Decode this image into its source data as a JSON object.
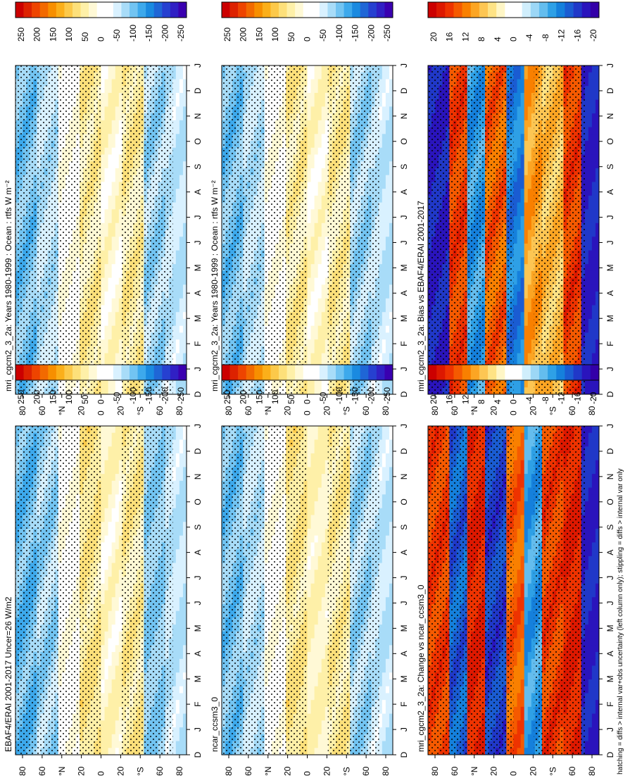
{
  "figure": {
    "footnote": "hatching = diffs > internal var+obs uncertainty (left column only); stippling = diffs > internal var only"
  },
  "colors": {
    "heat": [
      "#cc0000",
      "#dd2200",
      "#ee4400",
      "#f26a00",
      "#f78f00",
      "#fbaf1a",
      "#fcc94a",
      "#fde07a",
      "#fef0a8",
      "#fff9d6",
      "#ffffff",
      "#ffffff",
      "#d9f1ff",
      "#a8dcf8",
      "#72c4f2",
      "#3da9ec",
      "#1a8ae0",
      "#1f66d6",
      "#2640d0",
      "#3020c4",
      "#3a00b0"
    ],
    "diff": [
      "#cc0000",
      "#dd1800",
      "#ee3300",
      "#f55a00",
      "#f98000",
      "#fca523",
      "#fdc653",
      "#fee385",
      "#fff6c6",
      "#ffffff",
      "#ffffff",
      "#d0eefc",
      "#9cd7f6",
      "#64bdee",
      "#2ea0e6",
      "#1580dc",
      "#1a5cd2",
      "#2038c8",
      "#2a14bc",
      "#3300a8"
    ]
  },
  "chart_data": [
    {
      "type": "heatmap",
      "panel": "top-left",
      "title": "mri_cgcm2_3_2a: Years 1980-1999 : Ocean : rtfs W m⁻²",
      "x_ticks": [
        "D",
        "J",
        "F",
        "M",
        "A",
        "M",
        "J",
        "J",
        "A",
        "S",
        "O",
        "N",
        "D",
        "J"
      ],
      "y_ticks": [
        "80",
        "60",
        "°N",
        "20",
        "0",
        "20",
        "°S",
        "60",
        "80"
      ],
      "colorbar": {
        "ticks": [
          "250",
          "200",
          "150",
          "100",
          "50",
          "0",
          "-50",
          "-100",
          "-150",
          "-200",
          "-250"
        ],
        "palette": "heat"
      },
      "bands": [
        [
          -100,
          -100
        ],
        [
          -70,
          -70
        ],
        [
          0,
          0
        ],
        [
          60,
          40
        ],
        [
          30,
          20
        ],
        [
          60,
          40
        ],
        [
          -80,
          -80
        ],
        [
          -60,
          -70
        ]
      ],
      "month_factor": [
        1.0,
        0.95,
        0.85,
        0.6,
        0.4,
        0.35,
        0.4,
        0.55,
        0.8,
        0.95,
        1.0,
        1.0
      ]
    },
    {
      "type": "heatmap",
      "panel": "top-right",
      "title": "mri_cgcm2_3_2a: Years 1980-1999 : Ocean : rtfs W m⁻²",
      "x_ticks": [
        "D",
        "J",
        "F",
        "M",
        "A",
        "M",
        "J",
        "J",
        "A",
        "S",
        "O",
        "N",
        "D",
        "J"
      ],
      "y_ticks": [
        "80",
        "60",
        "°N",
        "20",
        "0",
        "20",
        "°S",
        "60",
        "80"
      ],
      "colorbar": {
        "ticks": [
          "250",
          "200",
          "150",
          "100",
          "50",
          "0",
          "-50",
          "-100",
          "-150",
          "-200",
          "-250"
        ],
        "palette": "heat"
      },
      "bands": [
        [
          -100,
          -100
        ],
        [
          -70,
          -70
        ],
        [
          0,
          0
        ],
        [
          60,
          40
        ],
        [
          30,
          20
        ],
        [
          60,
          40
        ],
        [
          -80,
          -80
        ],
        [
          -60,
          -70
        ]
      ],
      "month_factor": [
        1.0,
        0.95,
        0.85,
        0.6,
        0.4,
        0.35,
        0.4,
        0.55,
        0.8,
        0.95,
        1.0,
        1.0
      ]
    },
    {
      "type": "heatmap",
      "panel": "middle-left",
      "title": "EBAF4/ERAI 2001-2017 Uncer=26 W/m2",
      "x_ticks": [
        "D",
        "J",
        "F",
        "M",
        "A",
        "M",
        "J",
        "J",
        "A",
        "S",
        "O",
        "N",
        "D",
        "J"
      ],
      "y_ticks": [
        "80",
        "60",
        "°N",
        "20",
        "0",
        "20",
        "°S",
        "60",
        "80"
      ],
      "colorbar": {
        "ticks": [
          "250",
          "200",
          "150",
          "100",
          "50",
          "0",
          "-50",
          "-100",
          "-150",
          "-200",
          "-250"
        ],
        "palette": "heat"
      },
      "bands": [
        [
          -110,
          -110
        ],
        [
          -80,
          -80
        ],
        [
          0,
          0
        ],
        [
          70,
          50
        ],
        [
          35,
          20
        ],
        [
          60,
          40
        ],
        [
          -90,
          -90
        ],
        [
          -60,
          -70
        ]
      ],
      "month_factor": [
        1.0,
        0.95,
        0.85,
        0.6,
        0.4,
        0.35,
        0.4,
        0.55,
        0.8,
        0.95,
        1.0,
        1.0
      ]
    },
    {
      "type": "heatmap",
      "panel": "middle-right",
      "title": "ncar_ccsm3_0",
      "x_ticks": [
        "D",
        "J",
        "F",
        "M",
        "A",
        "M",
        "J",
        "J",
        "A",
        "S",
        "O",
        "N",
        "D",
        "J"
      ],
      "y_ticks": [
        "80",
        "60",
        "°N",
        "20",
        "0",
        "20",
        "°S",
        "60",
        "80"
      ],
      "colorbar": {
        "ticks": [
          "250",
          "200",
          "150",
          "100",
          "50",
          "0",
          "-50",
          "-100",
          "-150",
          "-200",
          "-250"
        ],
        "palette": "heat"
      },
      "bands": [
        [
          -100,
          -100
        ],
        [
          -70,
          -70
        ],
        [
          0,
          0
        ],
        [
          70,
          50
        ],
        [
          40,
          30
        ],
        [
          60,
          40
        ],
        [
          -80,
          -80
        ],
        [
          -60,
          -70
        ]
      ],
      "month_factor": [
        1.0,
        0.95,
        0.85,
        0.6,
        0.4,
        0.35,
        0.4,
        0.55,
        0.8,
        0.95,
        1.0,
        1.0
      ]
    },
    {
      "type": "heatmap",
      "panel": "bottom-left",
      "title": "mri_cgcm2_3_2a: Bias vs EBAF4/ERAI 2001-2017",
      "x_ticks": [
        "D",
        "J",
        "F",
        "M",
        "A",
        "M",
        "J",
        "J",
        "A",
        "S",
        "O",
        "N",
        "D",
        "J"
      ],
      "y_ticks": [
        "80",
        "60",
        "°N",
        "20",
        "0",
        "20",
        "°S",
        "60",
        "80"
      ],
      "colorbar": {
        "ticks": [
          "20",
          "16",
          "12",
          "8",
          "4",
          "0",
          "-4",
          "-8",
          "-12",
          "-16",
          "-20"
        ],
        "palette": "diff"
      },
      "bands": [
        [
          -18,
          -18
        ],
        [
          16,
          16
        ],
        [
          -10,
          -10
        ],
        [
          14,
          14
        ],
        [
          -12,
          -12
        ],
        [
          10,
          10
        ],
        [
          8,
          8
        ],
        [
          16,
          16
        ],
        [
          -18,
          -18
        ]
      ],
      "month_factor": [
        1.0,
        1.0,
        1.0,
        0.8,
        0.6,
        0.5,
        0.6,
        0.8,
        1.0,
        1.0,
        1.0,
        1.0
      ]
    },
    {
      "type": "heatmap",
      "panel": "bottom-right",
      "title": "mri_cgcm2_3_2a: Change vs ncar_ccsm3_0",
      "x_ticks": [
        "D",
        "J",
        "F",
        "M",
        "A",
        "M",
        "J",
        "J",
        "A",
        "S",
        "O",
        "N",
        "D",
        "J"
      ],
      "y_ticks": [
        "80",
        "60",
        "°N",
        "20",
        "0",
        "20",
        "°S",
        "60",
        "80"
      ],
      "colorbar": {
        "ticks": [
          "20",
          "16",
          "12",
          "8",
          "4",
          "0",
          "-4",
          "-8",
          "-12",
          "-16",
          "-20"
        ],
        "palette": "diff"
      },
      "bands": [
        [
          16,
          16
        ],
        [
          -14,
          -14
        ],
        [
          18,
          18
        ],
        [
          -16,
          -16
        ],
        [
          14,
          14
        ],
        [
          -10,
          -10
        ],
        [
          16,
          16
        ],
        [
          18,
          18
        ],
        [
          -18,
          -18
        ]
      ],
      "month_factor": [
        1.0,
        0.9,
        0.9,
        0.8,
        0.7,
        0.6,
        0.7,
        0.8,
        0.9,
        1.0,
        1.0,
        1.0
      ]
    }
  ]
}
